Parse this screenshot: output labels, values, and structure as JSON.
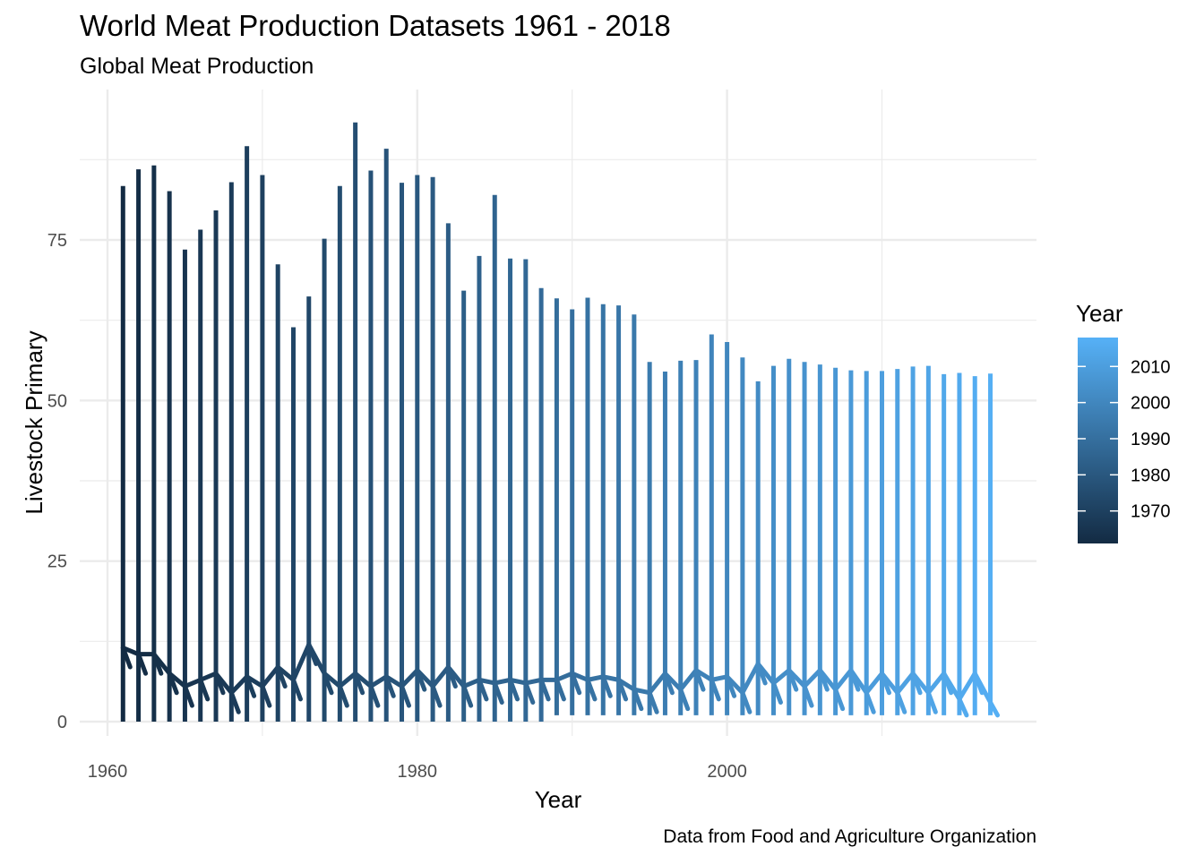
{
  "chart_data": {
    "type": "line",
    "title": "World Meat Production Datasets 1961 - 2018",
    "subtitle": "Global Meat Production",
    "caption": "Data from Food and Agriculture Organization",
    "xlabel": "Year",
    "ylabel": "Livestock Primary",
    "xlim": [
      1960,
      2017
    ],
    "ylim": [
      0,
      93
    ],
    "x_ticks": [
      1960,
      1980,
      2000
    ],
    "y_ticks": [
      0,
      25,
      50,
      75
    ],
    "grid": true,
    "legend": {
      "title": "Year",
      "placement": "right",
      "type": "colorbar",
      "range": [
        1961,
        2018
      ],
      "ticks": [
        1970,
        1980,
        1990,
        2000,
        2010
      ],
      "color_low": "#132B43",
      "color_high": "#56B1F7"
    },
    "description_note": "",
    "x": [
      1961,
      1962,
      1963,
      1964,
      1965,
      1966,
      1967,
      1968,
      1969,
      1970,
      1971,
      1972,
      1973,
      1974,
      1975,
      1976,
      1977,
      1978,
      1979,
      1980,
      1981,
      1982,
      1983,
      1984,
      1985,
      1986,
      1987,
      1988,
      1989,
      1990,
      1991,
      1992,
      1993,
      1994,
      1995,
      1996,
      1997,
      1998,
      1999,
      2000,
      2001,
      2002,
      2003,
      2004,
      2005,
      2006,
      2007,
      2008,
      2009,
      2010,
      2011,
      2012,
      2013,
      2014,
      2015,
      2016,
      2017
    ],
    "max_values": [
      83.4,
      86.0,
      86.6,
      82.6,
      73.5,
      76.6,
      79.6,
      84.0,
      89.6,
      85.1,
      71.2,
      61.4,
      66.2,
      75.2,
      83.4,
      93.3,
      85.8,
      89.2,
      83.9,
      85.1,
      84.8,
      77.6,
      67.1,
      72.5,
      82.0,
      72.1,
      72.0,
      67.5,
      65.9,
      64.2,
      66.0,
      65.0,
      64.8,
      63.4,
      56.0,
      54.5,
      56.2,
      56.3,
      60.3,
      59.1,
      56.7,
      53.0,
      55.4,
      56.5,
      56.0,
      55.6,
      55.1,
      54.7,
      54.6,
      54.6,
      54.9,
      55.3,
      55.4,
      54.1,
      54.3,
      53.8,
      54.2
    ],
    "min_values": [
      0,
      0,
      0,
      0,
      0,
      0,
      0,
      0,
      0,
      0,
      0,
      0,
      0,
      0,
      0,
      0,
      0,
      0,
      0,
      0,
      0,
      0,
      0,
      0,
      0,
      0,
      0,
      0,
      1,
      1,
      1,
      1,
      1,
      1,
      1,
      1,
      1,
      1,
      1,
      1,
      1,
      1,
      1,
      1,
      1,
      1,
      1,
      1,
      1,
      1,
      1,
      1,
      1,
      1,
      1,
      1,
      1
    ],
    "low_values": [
      11.5,
      10.5,
      10.5,
      7.5,
      5.5,
      6.5,
      7.5,
      4.5,
      7.0,
      5.5,
      8.5,
      6.5,
      12.0,
      7.5,
      5.5,
      7.5,
      5.5,
      7.0,
      5.5,
      8.0,
      5.5,
      8.5,
      5.5,
      6.5,
      6.0,
      6.5,
      6.0,
      6.5,
      6.5,
      7.5,
      6.5,
      7.0,
      6.5,
      5.0,
      4.5,
      7.5,
      5.0,
      8.0,
      6.5,
      7.0,
      4.5,
      9.0,
      6.0,
      8.0,
      5.5,
      8.0,
      5.0,
      8.0,
      4.5,
      7.5,
      4.5,
      7.5,
      4.5,
      7.5,
      3.5,
      7.5,
      3.0
    ],
    "series": [
      {
        "name": "Livestock Primary"
      }
    ]
  }
}
